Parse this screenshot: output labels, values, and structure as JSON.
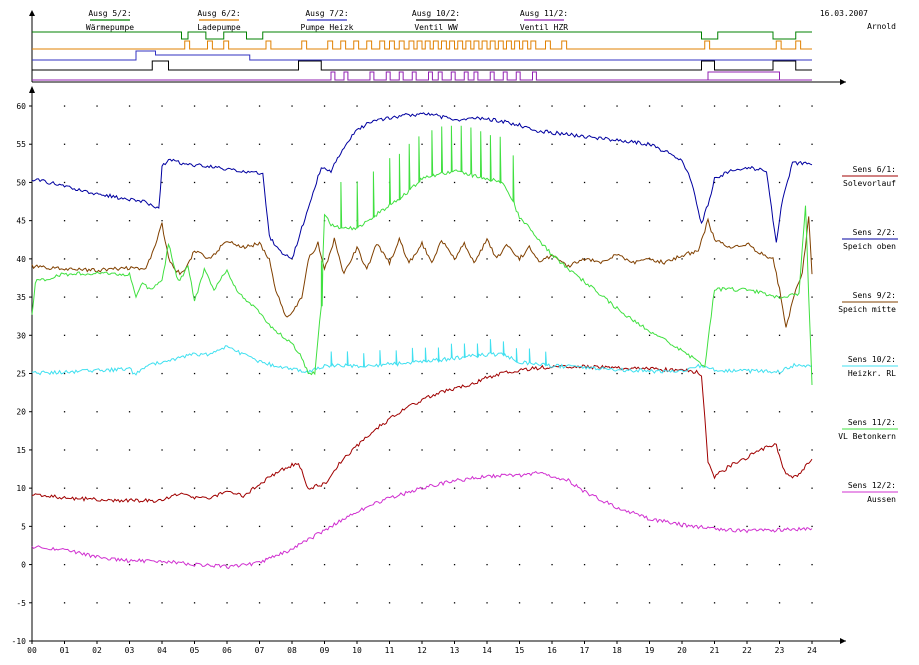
{
  "header": {
    "date": "16.03.2007",
    "author": "Arnold"
  },
  "chart_data": [
    {
      "type": "timing",
      "x_range": [
        0,
        24
      ],
      "channels": [
        {
          "key": "ausg5",
          "label": "Ausg 5/2:",
          "sublabel": "Wärmepumpe",
          "color": "#008000",
          "low_intervals": [
            [
              4.6,
              4.8
            ],
            [
              5.35,
              5.9
            ],
            [
              6.6,
              7.1
            ],
            [
              20.6,
              21.1
            ],
            [
              22.8,
              23.5
            ]
          ]
        },
        {
          "key": "ausg6",
          "label": "Ausg 6/2:",
          "sublabel": "Ladepumpe",
          "color": "#e08000",
          "pulse_starts": [
            4.7,
            5.4,
            5.9,
            7.2,
            8.3,
            9.1,
            9.5,
            9.9,
            10.3,
            10.7,
            11.0,
            11.3,
            11.6,
            11.85,
            12.1,
            12.35,
            12.6,
            12.85,
            13.1,
            13.35,
            13.6,
            13.85,
            14.1,
            14.35,
            14.6,
            14.85,
            15.1,
            15.35,
            15.8,
            16.3,
            20.7,
            22.9,
            23.5
          ],
          "pulse_width": 0.15
        },
        {
          "key": "ausg7",
          "label": "Ausg 7/2:",
          "sublabel": "Pumpe Heizk",
          "color": "#3030c0",
          "high_intervals": [
            [
              3.2,
              3.8
            ],
            [
              3.8,
              6.7
            ]
          ],
          "low_level_after": 6.7
        },
        {
          "key": "ausg10",
          "label": "Ausg 10/2:",
          "sublabel": "Ventil WW",
          "color": "#000000",
          "high_intervals": [
            [
              3.7,
              4.2
            ],
            [
              8.2,
              8.9
            ],
            [
              20.6,
              21.0
            ],
            [
              22.8,
              23.5
            ]
          ]
        },
        {
          "key": "ausg11",
          "label": "Ausg 11/2:",
          "sublabel": "Ventil HZR",
          "color": "#9020b0",
          "pulse_starts": [
            9.2,
            9.6,
            10.4,
            10.9,
            11.3,
            11.7,
            12.2,
            12.5,
            12.9,
            13.3,
            13.6,
            14.1,
            14.5,
            14.9,
            15.4
          ],
          "pulse_width": 0.12,
          "high_intervals": [
            [
              8.2,
              8.7
            ],
            [
              20.8,
              23.5
            ]
          ]
        }
      ]
    },
    {
      "type": "line",
      "x_ticks": [
        "00",
        "01",
        "02",
        "03",
        "04",
        "05",
        "06",
        "07",
        "08",
        "09",
        "10",
        "11",
        "12",
        "13",
        "14",
        "15",
        "16",
        "17",
        "18",
        "19",
        "20",
        "21",
        "22",
        "23",
        "24"
      ],
      "xlim": [
        0,
        24
      ],
      "ylim": [
        -10,
        60
      ],
      "y_ticks": [
        -10,
        -5,
        0,
        5,
        10,
        15,
        20,
        25,
        30,
        35,
        40,
        45,
        50,
        55,
        60
      ],
      "grid": "dots",
      "series": [
        {
          "name": "Sens 6/1:",
          "sublabel": "Solevorlauf",
          "color": "#a00000",
          "x": [
            0,
            1,
            2,
            3,
            3.5,
            4,
            4.5,
            5,
            5.5,
            6,
            6.5,
            7,
            7.5,
            8,
            8.2,
            8.5,
            9,
            9.5,
            10,
            10.5,
            11,
            11.5,
            12,
            12.5,
            13,
            13.5,
            14,
            14.5,
            15,
            15.5,
            16,
            16.5,
            17,
            18,
            19,
            20,
            20.5,
            20.6,
            20.8,
            21,
            21.5,
            22,
            22.5,
            22.9,
            23.1,
            23.3,
            23.6,
            24
          ],
          "y": [
            9.3,
            8.7,
            8.5,
            8.4,
            8.4,
            8.3,
            9.3,
            8.8,
            8.7,
            9.7,
            9.0,
            10.5,
            12.0,
            13.0,
            13.3,
            10.0,
            10.5,
            13.5,
            15.5,
            17.5,
            19.0,
            20.5,
            21.5,
            22.5,
            23.0,
            23.5,
            24.5,
            25.0,
            25.4,
            25.7,
            25.9,
            25.9,
            25.9,
            25.7,
            25.6,
            25.4,
            25.2,
            24.8,
            13.5,
            11.5,
            13.0,
            14.0,
            15.2,
            15.8,
            12.5,
            11.5,
            11.8,
            13.8
          ]
        },
        {
          "name": "Sens 2/2:",
          "sublabel": "Speich oben",
          "color": "#0000a0",
          "x": [
            0,
            1,
            2,
            3,
            3.5,
            3.9,
            4.0,
            4.2,
            4.6,
            5,
            5.5,
            6,
            6.5,
            7,
            7.1,
            7.3,
            7.6,
            8.0,
            8.3,
            8.6,
            8.9,
            9.2,
            9.5,
            10,
            10.5,
            11,
            11.5,
            12,
            12.5,
            13,
            13.5,
            14,
            14.5,
            15,
            15.5,
            16,
            16.5,
            17,
            18,
            19,
            19.5,
            20,
            20.3,
            20.6,
            20.9,
            21.0,
            21.5,
            22,
            22.6,
            22.9,
            23.1,
            23.4,
            23.6,
            24
          ],
          "y": [
            50.5,
            49.5,
            48.5,
            47.8,
            47.5,
            46.5,
            52.0,
            53.0,
            52.5,
            52.3,
            52.0,
            51.8,
            51.5,
            51.3,
            51.0,
            43.0,
            41.0,
            40.0,
            44.0,
            48.0,
            52.0,
            51.5,
            54.0,
            57.0,
            58.0,
            58.5,
            58.8,
            59.0,
            58.7,
            58.2,
            58.4,
            58.3,
            58.0,
            57.5,
            56.8,
            56.5,
            56.3,
            56.0,
            55.5,
            55.0,
            54.0,
            53.0,
            50.0,
            44.5,
            48.5,
            50.5,
            51.5,
            52.0,
            51.5,
            42.0,
            48.0,
            52.5,
            52.5,
            52.3
          ]
        },
        {
          "name": "Sens 9/2:",
          "sublabel": "Speich mitte",
          "color": "#804000",
          "x": [
            0,
            1,
            2,
            3,
            3.5,
            3.8,
            4.0,
            4.2,
            4.4,
            4.6,
            5,
            5.5,
            6,
            6.5,
            7,
            7.3,
            7.5,
            7.8,
            8.0,
            8.3,
            8.5,
            8.8,
            9.0,
            9.3,
            9.6,
            10,
            10.3,
            10.6,
            11,
            11.3,
            11.6,
            12,
            12.3,
            12.6,
            13,
            13.3,
            13.6,
            14,
            14.3,
            14.6,
            15,
            15.3,
            15.6,
            16,
            16.5,
            17,
            17.5,
            18,
            18.5,
            19,
            19.5,
            20,
            20.5,
            20.8,
            21.0,
            21.5,
            22,
            22.5,
            22.8,
            23.0,
            23.2,
            23.5,
            23.7,
            23.9,
            24
          ],
          "y": [
            39.0,
            38.7,
            38.5,
            38.8,
            38.5,
            42.0,
            44.5,
            40.0,
            38.5,
            38.0,
            41.0,
            40.0,
            42.5,
            41.5,
            42.0,
            40.0,
            36.0,
            32.5,
            33.0,
            35.0,
            40.0,
            42.0,
            38.5,
            42.5,
            38.0,
            41.5,
            38.5,
            42.0,
            39.5,
            42.5,
            39.5,
            42.0,
            39.5,
            42.5,
            40.0,
            42.0,
            39.5,
            42.5,
            40.0,
            42.0,
            40.0,
            41.5,
            39.5,
            40.5,
            39.0,
            40.0,
            39.5,
            40.5,
            39.5,
            40.0,
            39.5,
            40.5,
            41.0,
            45.0,
            42.5,
            41.5,
            42.0,
            40.5,
            40.0,
            36.0,
            31.0,
            36.0,
            38.0,
            45.5,
            38.0
          ]
        },
        {
          "name": "Sens 10/2:",
          "sublabel": "Heizkr. RL",
          "color": "#40e0f0",
          "x": [
            0,
            1,
            2,
            3,
            3.2,
            3.4,
            4,
            4.5,
            5,
            5.5,
            6,
            6.5,
            7,
            7.5,
            8,
            8.5,
            9,
            10,
            11,
            12,
            13,
            14,
            14.5,
            15,
            16,
            17,
            18,
            19,
            20,
            20.5,
            21,
            21.5,
            22,
            22.5,
            23,
            23.5,
            24
          ],
          "y": [
            25.0,
            25.2,
            25.4,
            25.6,
            24.8,
            25.8,
            26.5,
            27.0,
            27.5,
            27.5,
            28.5,
            27.5,
            26.5,
            26.0,
            25.5,
            25.3,
            26.0,
            26.0,
            26.2,
            26.5,
            27.0,
            27.5,
            27.5,
            26.5,
            26.0,
            25.8,
            25.5,
            25.3,
            25.3,
            26.0,
            25.5,
            25.3,
            25.3,
            25.3,
            25.2,
            26.2,
            26.0
          ],
          "spike_x": [
            9.2,
            9.7,
            10.2,
            10.7,
            11.2,
            11.7,
            12.1,
            12.5,
            12.9,
            13.3,
            13.7,
            14.1,
            14.5,
            14.9,
            15.3,
            15.8
          ],
          "spike_height": 1.8
        },
        {
          "name": "Sens 11/2:",
          "sublabel": "VL Betonkern",
          "color": "#40e040",
          "x": [
            0,
            0.1,
            1,
            2,
            3,
            3.2,
            3.4,
            3.6,
            4.0,
            4.2,
            4.5,
            4.8,
            5.0,
            5.3,
            5.6,
            6.0,
            6.3,
            6.6,
            7,
            7.5,
            8,
            8.3,
            8.5,
            8.7,
            8.9,
            9.0,
            9.2,
            9.5,
            10,
            10.5,
            11,
            11.5,
            12,
            12.5,
            13,
            13.5,
            14,
            14.5,
            15,
            15.5,
            16,
            17,
            18,
            19,
            20,
            20.5,
            20.7,
            21,
            22,
            23,
            23.6,
            23.8,
            24
          ],
          "y": [
            32.5,
            37.0,
            38.0,
            38.2,
            38.0,
            35.0,
            37.0,
            36.0,
            37.0,
            42.0,
            37.0,
            39.0,
            34.5,
            38.5,
            36.0,
            38.5,
            36.0,
            34.5,
            33.0,
            30.5,
            29.0,
            27.0,
            25.0,
            25.0,
            34.0,
            46.0,
            44.5,
            44.0,
            44.0,
            45.5,
            47.0,
            48.5,
            50.5,
            51.0,
            51.5,
            51.0,
            50.5,
            50.0,
            45.5,
            43.0,
            40.5,
            37.0,
            33.5,
            30.5,
            28.0,
            26.5,
            26.0,
            36.0,
            36.0,
            35.0,
            35.5,
            47.0,
            23.5
          ],
          "spike_x": [
            8.9,
            9.5,
            10.0,
            10.5,
            11.0,
            11.3,
            11.6,
            11.9,
            12.3,
            12.6,
            12.9,
            13.2,
            13.5,
            13.8,
            14.1,
            14.4,
            14.8
          ],
          "spike_height": 6.0
        },
        {
          "name": "Sens 12/2:",
          "sublabel": "Aussen",
          "color": "#d030d0",
          "x": [
            0,
            1,
            2,
            3,
            3.5,
            4,
            5,
            6,
            7,
            8,
            9,
            10,
            11,
            12,
            13,
            14,
            15,
            15.7,
            16.5,
            17,
            18,
            19,
            20,
            21,
            22,
            23,
            24
          ],
          "y": [
            2.3,
            2.0,
            1.0,
            0.5,
            0.5,
            0.5,
            0.0,
            -0.3,
            0.2,
            2.0,
            4.5,
            7.0,
            8.7,
            10.0,
            11.0,
            11.5,
            11.7,
            12.0,
            11.0,
            9.5,
            7.5,
            6.0,
            5.2,
            4.7,
            4.4,
            4.5,
            4.7
          ]
        }
      ]
    }
  ]
}
